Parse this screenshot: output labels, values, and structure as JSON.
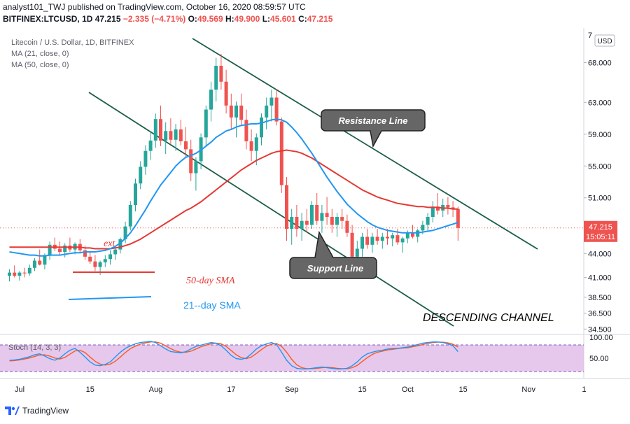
{
  "header": {
    "line1": "analyst101_TWJ published on TradingView.com, October 16, 2020 08:59:57 UTC",
    "symbol": "BITFINEX:LTCUSD, 1D",
    "price": "47.215",
    "change": "−2.335 (−4.71%)",
    "o_label": "O:",
    "o_val": "49.569",
    "h_label": "H:",
    "h_val": "49.900",
    "l_label": "L:",
    "l_val": "45.601",
    "c_label": "C:",
    "c_val": "47.215"
  },
  "legend": {
    "title": "Litecoin / U.S. Dollar, 1D, BITFINEX",
    "ma21": "MA (21, close, 0)",
    "ma50": "MA (50, close, 0)"
  },
  "annotations": {
    "resistance": "Resistance Line",
    "support": "Support Line",
    "channel": "DESCENDING CHANNEL",
    "sma50": "50-day SMA",
    "sma21": "21--day SMA",
    "partial": "ext"
  },
  "price_badge": {
    "price": "47.215",
    "time": "15:05:11"
  },
  "currency_button": "USD",
  "stoch_label": "Stoch (14, 3, 3)",
  "footer": {
    "brand": "TradingView"
  },
  "colors": {
    "up": "#26a69a",
    "down": "#ef5350",
    "ma21": "#2196f3",
    "ma50": "#e53935",
    "trendline": "#1b5e4a",
    "stoch_band": "#e1bee7",
    "stoch_k": "#2196f3",
    "stoch_d": "#ff5722"
  },
  "chart_data": {
    "type": "candlestick",
    "title": "Litecoin / U.S. Dollar, 1D, BITFINEX",
    "y_ticks": [
      "68.000",
      "63.000",
      "59.000",
      "55.000",
      "51.000",
      "44.000",
      "41.000",
      "38.500",
      "36.500",
      "34.500"
    ],
    "y_top_partial": "7",
    "x_ticks": [
      "Jul",
      "15",
      "Aug",
      "17",
      "Sep",
      "15",
      "Oct",
      "15",
      "Nov",
      "1"
    ],
    "ylim": [
      34.0,
      72.0
    ],
    "candles": [
      [
        41.2,
        42.0,
        40.5,
        41.6
      ],
      [
        41.6,
        42.5,
        41.0,
        41.2
      ],
      [
        41.2,
        41.8,
        40.6,
        41.6
      ],
      [
        41.6,
        42.2,
        41.0,
        41.5
      ],
      [
        41.5,
        42.6,
        41.2,
        42.2
      ],
      [
        42.2,
        43.4,
        41.8,
        43.1
      ],
      [
        43.1,
        44.5,
        42.5,
        42.6
      ],
      [
        42.6,
        44.0,
        42.0,
        43.8
      ],
      [
        43.8,
        45.5,
        43.2,
        45.1
      ],
      [
        45.1,
        46.0,
        44.3,
        44.6
      ],
      [
        44.6,
        45.5,
        43.8,
        44.2
      ],
      [
        44.2,
        45.3,
        43.5,
        45.0
      ],
      [
        45.0,
        46.0,
        44.2,
        44.5
      ],
      [
        44.5,
        45.4,
        43.9,
        45.2
      ],
      [
        45.2,
        45.8,
        44.0,
        44.4
      ],
      [
        44.4,
        45.0,
        43.2,
        43.6
      ],
      [
        43.6,
        44.3,
        42.7,
        43.0
      ],
      [
        43.0,
        43.8,
        41.8,
        42.3
      ],
      [
        42.3,
        43.1,
        41.3,
        42.9
      ],
      [
        42.9,
        43.8,
        42.3,
        43.3
      ],
      [
        43.3,
        44.4,
        42.6,
        43.9
      ],
      [
        43.9,
        44.9,
        43.2,
        44.5
      ],
      [
        44.5,
        46.0,
        44.0,
        45.8
      ],
      [
        45.8,
        48.0,
        45.3,
        47.4
      ],
      [
        47.4,
        50.6,
        46.9,
        50.1
      ],
      [
        50.1,
        53.4,
        49.3,
        52.8
      ],
      [
        52.8,
        55.6,
        52.1,
        54.9
      ],
      [
        54.9,
        57.6,
        53.9,
        56.9
      ],
      [
        56.9,
        59.3,
        55.8,
        58.2
      ],
      [
        58.2,
        61.6,
        57.3,
        60.9
      ],
      [
        60.9,
        62.6,
        57.5,
        58.2
      ],
      [
        58.2,
        60.5,
        56.5,
        59.4
      ],
      [
        59.4,
        61.0,
        57.8,
        58.3
      ],
      [
        58.3,
        60.3,
        56.9,
        59.6
      ],
      [
        59.6,
        60.8,
        57.6,
        58.1
      ],
      [
        58.1,
        59.9,
        56.1,
        57.1
      ],
      [
        57.1,
        58.3,
        53.1,
        54.1
      ],
      [
        54.1,
        56.1,
        51.9,
        55.6
      ],
      [
        55.6,
        59.1,
        54.6,
        58.6
      ],
      [
        58.6,
        62.6,
        57.6,
        62.1
      ],
      [
        62.1,
        65.6,
        60.6,
        64.6
      ],
      [
        64.6,
        68.6,
        63.1,
        67.6
      ],
      [
        67.6,
        69.1,
        64.6,
        65.6
      ],
      [
        65.6,
        67.1,
        61.6,
        62.6
      ],
      [
        62.6,
        64.1,
        59.6,
        61.1
      ],
      [
        61.1,
        63.1,
        58.6,
        62.6
      ],
      [
        62.6,
        64.1,
        60.1,
        60.8
      ],
      [
        60.8,
        62.1,
        57.1,
        58.1
      ],
      [
        58.1,
        59.6,
        55.6,
        56.9
      ],
      [
        56.9,
        59.1,
        55.1,
        58.6
      ],
      [
        58.6,
        61.6,
        57.6,
        61.1
      ],
      [
        61.1,
        63.6,
        59.6,
        62.6
      ],
      [
        62.6,
        64.6,
        60.6,
        63.6
      ],
      [
        63.6,
        64.6,
        60.1,
        60.6
      ],
      [
        60.6,
        61.1,
        51.6,
        52.6
      ],
      [
        52.6,
        53.6,
        45.6,
        47.1
      ],
      [
        47.1,
        49.6,
        45.1,
        48.6
      ],
      [
        48.6,
        50.1,
        46.1,
        47.1
      ],
      [
        47.1,
        49.1,
        45.6,
        48.1
      ],
      [
        48.1,
        49.6,
        46.6,
        47.6
      ],
      [
        47.6,
        50.6,
        47.1,
        50.1
      ],
      [
        50.1,
        51.6,
        47.6,
        48.1
      ],
      [
        48.1,
        50.1,
        46.6,
        49.1
      ],
      [
        49.1,
        51.1,
        47.6,
        48.6
      ],
      [
        48.6,
        49.6,
        46.6,
        47.6
      ],
      [
        47.6,
        49.1,
        46.1,
        48.6
      ],
      [
        48.6,
        49.6,
        47.1,
        48.1
      ],
      [
        48.1,
        48.9,
        46.1,
        46.6
      ],
      [
        46.6,
        47.6,
        42.6,
        43.6
      ],
      [
        43.6,
        45.6,
        42.1,
        44.6
      ],
      [
        44.6,
        46.6,
        43.6,
        46.1
      ],
      [
        46.1,
        47.1,
        44.6,
        45.1
      ],
      [
        45.1,
        46.6,
        44.1,
        46.1
      ],
      [
        46.1,
        47.1,
        45.1,
        45.6
      ],
      [
        45.6,
        46.6,
        44.6,
        46.1
      ],
      [
        46.1,
        47.1,
        45.1,
        45.9
      ],
      [
        45.9,
        46.6,
        44.9,
        46.3
      ],
      [
        46.3,
        47.1,
        45.1,
        45.4
      ],
      [
        45.4,
        46.1,
        44.1,
        45.9
      ],
      [
        45.9,
        46.9,
        45.3,
        46.6
      ],
      [
        46.6,
        47.6,
        45.9,
        46.1
      ],
      [
        46.1,
        47.1,
        45.4,
        46.9
      ],
      [
        46.9,
        48.1,
        46.4,
        47.6
      ],
      [
        47.6,
        49.1,
        46.9,
        48.6
      ],
      [
        48.6,
        50.6,
        47.9,
        49.9
      ],
      [
        49.9,
        51.6,
        48.9,
        49.4
      ],
      [
        49.4,
        50.9,
        48.6,
        50.1
      ],
      [
        50.1,
        51.1,
        48.9,
        49.8
      ],
      [
        49.8,
        50.6,
        48.6,
        49.6
      ],
      [
        49.6,
        49.9,
        45.6,
        47.215
      ]
    ],
    "ma21": [
      44.2,
      44.1,
      44.0,
      43.9,
      43.8,
      43.8,
      43.7,
      43.7,
      43.8,
      43.8,
      43.8,
      43.9,
      44.0,
      44.1,
      44.1,
      44.2,
      44.2,
      44.2,
      44.3,
      44.4,
      44.6,
      44.9,
      45.3,
      45.9,
      46.6,
      47.5,
      48.5,
      49.5,
      50.6,
      51.6,
      52.6,
      53.4,
      54.2,
      55.0,
      55.6,
      56.1,
      56.3,
      56.6,
      57.0,
      57.5,
      58.0,
      58.6,
      59.0,
      59.4,
      59.6,
      59.9,
      60.1,
      60.2,
      60.3,
      60.3,
      60.4,
      60.6,
      60.8,
      60.9,
      60.8,
      60.5,
      59.9,
      59.2,
      58.4,
      57.5,
      56.6,
      55.6,
      54.6,
      53.6,
      52.7,
      51.8,
      51.0,
      50.2,
      49.6,
      49.0,
      48.5,
      48.0,
      47.6,
      47.3,
      47.1,
      46.9,
      46.8,
      46.7,
      46.6,
      46.6,
      46.6,
      46.6,
      46.7,
      46.8,
      46.9,
      47.1,
      47.3,
      47.5,
      47.7,
      47.9
    ],
    "ma50": [
      44.8,
      44.8,
      44.8,
      44.8,
      44.8,
      44.8,
      44.8,
      44.8,
      44.8,
      44.8,
      44.8,
      44.8,
      44.8,
      44.8,
      44.8,
      44.7,
      44.7,
      44.6,
      44.6,
      44.6,
      44.6,
      44.7,
      44.8,
      45.0,
      45.2,
      45.5,
      45.8,
      46.2,
      46.6,
      47.0,
      47.4,
      47.8,
      48.2,
      48.6,
      49.0,
      49.4,
      49.7,
      50.1,
      50.5,
      51.0,
      51.5,
      52.0,
      52.5,
      53.0,
      53.5,
      54.0,
      54.5,
      54.9,
      55.3,
      55.7,
      56.0,
      56.3,
      56.6,
      56.8,
      56.9,
      57.0,
      56.9,
      56.8,
      56.6,
      56.3,
      56.0,
      55.6,
      55.2,
      54.8,
      54.4,
      54.0,
      53.6,
      53.2,
      52.8,
      52.4,
      52.0,
      51.7,
      51.4,
      51.1,
      50.9,
      50.7,
      50.5,
      50.3,
      50.2,
      50.1,
      50.0,
      49.9,
      49.9,
      49.8,
      49.8,
      49.8,
      49.7,
      49.7,
      49.6,
      49.6
    ],
    "stoch_k": [
      35,
      36,
      38,
      42,
      46,
      52,
      55,
      48,
      40,
      35,
      42,
      55,
      66,
      72,
      60,
      45,
      30,
      20,
      18,
      22,
      30,
      45,
      60,
      72,
      80,
      86,
      90,
      92,
      94,
      90,
      80,
      70,
      62,
      60,
      58,
      62,
      70,
      78,
      82,
      86,
      90,
      88,
      80,
      66,
      50,
      40,
      38,
      42,
      55,
      70,
      80,
      86,
      90,
      84,
      60,
      35,
      18,
      10,
      8,
      8,
      10,
      12,
      14,
      12,
      10,
      8,
      8,
      10,
      18,
      30,
      45,
      55,
      60,
      64,
      66,
      70,
      72,
      72,
      74,
      76,
      80,
      84,
      88,
      90,
      92,
      92,
      90,
      86,
      80,
      62
    ],
    "stoch_d": [
      33,
      34,
      36,
      39,
      42,
      47,
      51,
      52,
      48,
      42,
      39,
      44,
      54,
      64,
      66,
      59,
      45,
      32,
      23,
      20,
      23,
      32,
      45,
      59,
      71,
      79,
      85,
      89,
      92,
      92,
      88,
      80,
      71,
      64,
      60,
      60,
      63,
      70,
      77,
      82,
      86,
      88,
      86,
      78,
      65,
      52,
      43,
      40,
      45,
      56,
      68,
      79,
      85,
      87,
      78,
      60,
      38,
      21,
      12,
      9,
      9,
      10,
      12,
      13,
      12,
      10,
      9,
      9,
      12,
      19,
      31,
      43,
      53,
      60,
      63,
      67,
      69,
      71,
      73,
      74,
      77,
      80,
      84,
      87,
      90,
      91,
      91,
      89,
      85,
      76
    ],
    "stoch_ticks": [
      "100.00",
      "50.00"
    ]
  }
}
